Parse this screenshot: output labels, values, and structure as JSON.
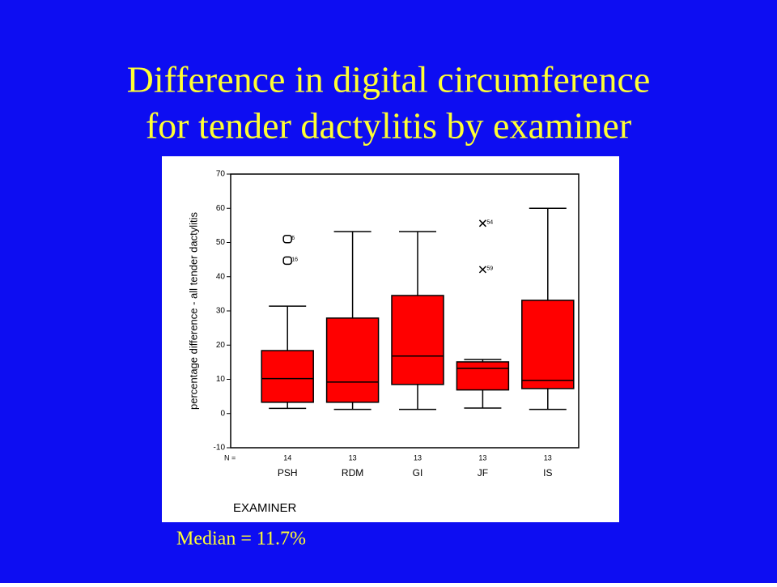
{
  "chart_data": {
    "type": "box",
    "title": [
      "Difference in digital circumference",
      "for tender dactylitis by examiner"
    ],
    "y_label": "percentage difference - all tender dactylitis",
    "x_label": "EXAMINER",
    "note": "Median = 11.7%",
    "categories": [
      "PSH",
      "RDM",
      "GI",
      "JF",
      "IS"
    ],
    "n_label": "N =",
    "n": [
      14,
      13,
      13,
      13,
      13
    ],
    "color": "#ff0000",
    "boxes": [
      {
        "low": 1.5,
        "q1": 3.3,
        "median": 10.2,
        "q3": 18.4,
        "high": 31.4,
        "outliers": [
          {
            "value": 51,
            "label": "6",
            "marker": "o"
          },
          {
            "value": 44.7,
            "label": "16",
            "marker": "o"
          }
        ]
      },
      {
        "low": 1.2,
        "q1": 3.3,
        "median": 9.2,
        "q3": 27.9,
        "high": 53.2,
        "outliers": []
      },
      {
        "low": 1.2,
        "q1": 8.5,
        "median": 16.8,
        "q3": 34.5,
        "high": 53.2,
        "outliers": []
      },
      {
        "low": 1.6,
        "q1": 6.9,
        "median": 13.2,
        "q3": 15.1,
        "high": 15.8,
        "outliers": [
          {
            "value": 55.6,
            "label": "54",
            "marker": "x"
          },
          {
            "value": 42.1,
            "label": "59",
            "marker": "x"
          }
        ]
      },
      {
        "low": 1.2,
        "q1": 7.3,
        "median": 9.7,
        "q3": 33.1,
        "high": 60,
        "outliers": []
      }
    ],
    "ylim": [
      -10,
      70
    ],
    "yticks": [
      -10,
      0,
      10,
      20,
      30,
      40,
      50,
      60,
      70
    ]
  }
}
